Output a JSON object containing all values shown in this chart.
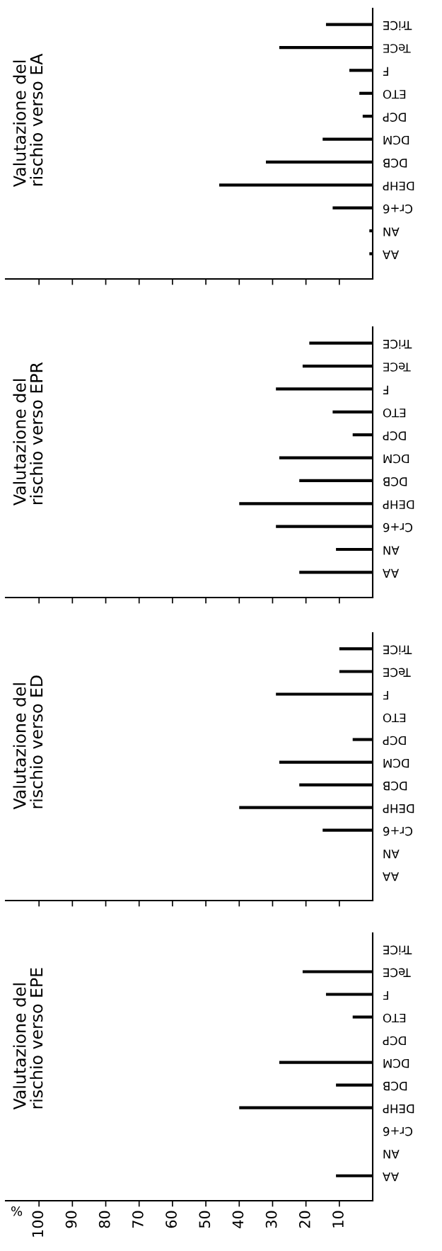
{
  "chart_data": [
    {
      "type": "bar",
      "orientation": "horizontal",
      "title": "Valutazione del\nrischio verso EA",
      "categories": [
        "TriCE",
        "TeCE",
        "F",
        "ETO",
        "DCP",
        "DCM",
        "DCB",
        "DEHP",
        "Cr+6",
        "AN",
        "AA"
      ],
      "values": [
        14,
        28,
        7,
        4,
        3,
        15,
        32,
        46,
        12,
        1,
        1
      ],
      "color": "#000000",
      "xlim": [
        110,
        0
      ],
      "xticks": [
        100,
        90,
        80,
        70,
        60,
        50,
        40,
        30,
        20,
        10
      ],
      "tick_labels": "y",
      "grid": false,
      "legend": false
    },
    {
      "type": "bar",
      "orientation": "horizontal",
      "title": "Valutazione del\nrischio verso EPR",
      "categories": [
        "TriCE",
        "TeCE",
        "F",
        "ETO",
        "DCP",
        "DCM",
        "DCB",
        "DEHP",
        "Cr+6",
        "AN",
        "AA"
      ],
      "values": [
        19,
        21,
        29,
        12,
        6,
        28,
        22,
        40,
        29,
        11,
        22
      ],
      "color": "#000000",
      "xlim": [
        110,
        0
      ],
      "xticks": [
        100,
        90,
        80,
        70,
        60,
        50,
        40,
        30,
        20,
        10
      ],
      "tick_labels": "y",
      "grid": false,
      "legend": false
    },
    {
      "type": "bar",
      "orientation": "horizontal",
      "title": "Valutazione del\nrischio verso ED",
      "categories": [
        "TriCE",
        "TeCE",
        "F",
        "ETO",
        "DCP",
        "DCM",
        "DCB",
        "DEHP",
        "Cr+6",
        "AN",
        "AA"
      ],
      "values": [
        10,
        10,
        29,
        null,
        6,
        28,
        22,
        40,
        15,
        null,
        null
      ],
      "color": "#000000",
      "xlim": [
        110,
        0
      ],
      "xticks": [
        100,
        90,
        80,
        70,
        60,
        50,
        40,
        30,
        20,
        10
      ],
      "tick_labels": "y",
      "grid": false,
      "legend": false
    },
    {
      "type": "bar",
      "orientation": "horizontal",
      "title": "Valutazione del\nrischio verso EPE",
      "xlabel": "%",
      "categories": [
        "TriCE",
        "TeCE",
        "F",
        "ETO",
        "DCP",
        "DCM",
        "DCB",
        "DEHP",
        "Cr+6",
        "AN",
        "AA"
      ],
      "values": [
        null,
        21,
        14,
        6,
        null,
        28,
        11,
        40,
        null,
        null,
        11
      ],
      "color": "#000000",
      "xlim": [
        110,
        0
      ],
      "xticks": [
        100,
        90,
        80,
        70,
        60,
        50,
        40,
        30,
        20,
        10
      ],
      "grid": false,
      "legend": false
    }
  ]
}
